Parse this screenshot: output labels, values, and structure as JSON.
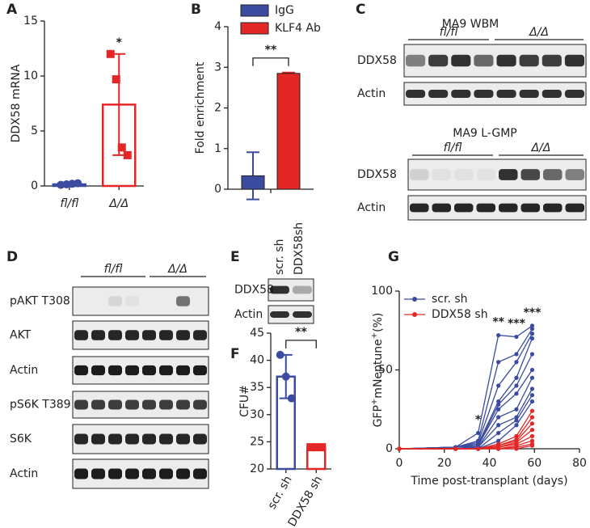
{
  "chart_data": [
    {
      "type": "bar",
      "label": "A",
      "ylabel": "DDX58 mRNA",
      "categories": [
        "fl/fl",
        "Δ/Δ"
      ],
      "values": [
        0.15,
        7.4
      ],
      "errors": [
        0.1,
        4.6
      ],
      "colors": [
        "#3b4ba0",
        "#e32726"
      ],
      "markers": [
        "circle",
        "square"
      ],
      "fill": false,
      "points": [
        [
          0.1,
          0.15,
          0.2,
          0.25
        ],
        [
          12,
          9.7,
          3.5,
          2.8
        ]
      ],
      "annotations": [
        {
          "text": "*",
          "category": 1
        }
      ],
      "ylim": [
        0,
        15
      ],
      "yticks": [
        0,
        5,
        10,
        15
      ]
    },
    {
      "type": "bar",
      "label": "B",
      "ylabel": "Fold enrichment",
      "categories": [
        null
      ],
      "fill": true,
      "series": [
        {
          "name": "IgG",
          "color": "#3b4ba0",
          "values": [
            0.33
          ],
          "errors": [
            0.58
          ]
        },
        {
          "name": "KLF4 Ab",
          "color": "#e32726",
          "values": [
            2.85
          ],
          "errors": [
            0.02
          ]
        }
      ],
      "annotations": [
        {
          "text": "**",
          "bracket": true
        }
      ],
      "ylim": [
        0,
        4
      ],
      "yticks": [
        0,
        1,
        2,
        3,
        4
      ]
    },
    {
      "type": "bar",
      "label": "F",
      "ylabel": "CFU#",
      "categories": [
        "scr. sh",
        "DDX58 sh"
      ],
      "values": [
        37,
        24
      ],
      "errors": [
        4,
        0.2
      ],
      "colors": [
        "#3b4ba0",
        "#e32726"
      ],
      "markers": [
        "circle",
        "square"
      ],
      "fill": false,
      "points": [
        [
          41,
          37,
          33
        ],
        [
          24,
          24,
          24
        ]
      ],
      "annotations": [
        {
          "text": "**",
          "bracket": true
        }
      ],
      "ylim": [
        20,
        45
      ],
      "yticks": [
        20,
        25,
        30,
        35,
        40,
        45
      ]
    },
    {
      "type": "line",
      "label": "G",
      "xlabel": "Time post-transplant (days)",
      "ylabel_parts": [
        {
          "text": "GFP"
        },
        {
          "text": "+",
          "sup": true
        },
        {
          "text": "mNeptune"
        },
        {
          "text": "+",
          "sup": true
        },
        {
          "text": "(%)"
        }
      ],
      "x": [
        0,
        25,
        35,
        44,
        52,
        59
      ],
      "groups": [
        {
          "name": "scr. sh",
          "color": "#3b4ba0",
          "lines": [
            [
              0,
              1,
              10,
              72,
              71,
              78
            ],
            [
              0,
              1,
              5,
              55,
              60,
              76
            ],
            [
              0,
              1,
              4,
              40,
              55,
              73
            ],
            [
              0,
              1,
              3,
              30,
              45,
              70
            ],
            [
              0,
              1,
              2,
              28,
              40,
              60
            ],
            [
              0,
              0,
              2,
              25,
              35,
              50
            ],
            [
              0,
              0,
              1,
              20,
              25,
              45
            ],
            [
              0,
              0,
              1,
              15,
              20,
              38
            ],
            [
              0,
              0,
              0,
              10,
              18,
              34
            ],
            [
              0,
              0,
              0,
              5,
              15,
              30
            ]
          ]
        },
        {
          "name": "DDX58 sh",
          "color": "#e32726",
          "lines": [
            [
              0,
              0,
              0,
              3,
              8,
              24
            ],
            [
              0,
              0,
              0,
              2,
              6,
              20
            ],
            [
              0,
              0,
              0,
              2,
              5,
              16
            ],
            [
              0,
              0,
              0,
              1,
              4,
              12
            ],
            [
              0,
              0,
              0,
              1,
              3,
              8
            ],
            [
              0,
              0,
              0,
              0,
              2,
              5
            ],
            [
              0,
              0,
              0,
              0,
              1,
              3
            ],
            [
              0,
              0,
              0,
              0,
              0,
              2
            ]
          ]
        }
      ],
      "annotations": [
        {
          "text": "*",
          "x": 35
        },
        {
          "text": "**",
          "x": 44
        },
        {
          "text": "***",
          "x": 52
        },
        {
          "text": "***",
          "x": 59
        }
      ],
      "xlim": [
        0,
        80
      ],
      "xticks": [
        0,
        20,
        40,
        60,
        80
      ],
      "ylim": [
        0,
        100
      ],
      "yticks": [
        0,
        50,
        100
      ]
    }
  ],
  "blots": [
    {
      "label": "C",
      "sections": [
        {
          "title": "MA9 WBM",
          "groups": [
            "fl/fl",
            "Δ/Δ"
          ],
          "rows": [
            "DDX58",
            "Actin"
          ]
        },
        {
          "title": "MA9 L-GMP",
          "groups": [
            "fl/fl",
            "Δ/Δ"
          ],
          "rows": [
            "DDX58",
            "Actin"
          ]
        }
      ]
    },
    {
      "label": "D",
      "sections": [
        {
          "groups": [
            "fl/fl",
            "Δ/Δ"
          ],
          "rows": [
            "pAKT T308",
            "AKT",
            "Actin",
            "pS6K T389",
            "S6K",
            "Actin"
          ]
        }
      ]
    },
    {
      "label": "E",
      "sections": [
        {
          "lanes": [
            "scr. sh",
            "DDX58sh"
          ],
          "rows": [
            "DDX58",
            "Actin"
          ]
        }
      ]
    }
  ]
}
